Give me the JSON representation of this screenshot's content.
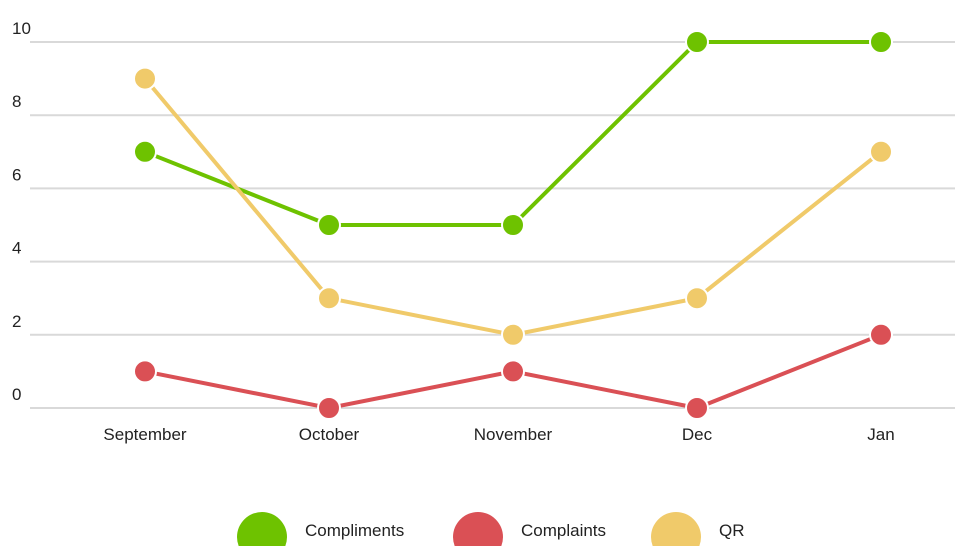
{
  "chart_data": {
    "type": "line",
    "categories": [
      "September",
      "October",
      "November",
      "Dec",
      "Jan"
    ],
    "series": [
      {
        "name": "Compliments",
        "color": "#6ec200",
        "values": [
          7,
          5,
          5,
          10,
          10
        ]
      },
      {
        "name": "Complaints",
        "color": "#da5055",
        "values": [
          1,
          0,
          1,
          0,
          2
        ]
      },
      {
        "name": "QR",
        "color": "#f0ca6a",
        "values": [
          9,
          3,
          2,
          3,
          7
        ]
      }
    ],
    "ylim": [
      0,
      10
    ],
    "yticks": [
      0,
      2,
      4,
      6,
      8,
      10
    ],
    "grid": true,
    "legend": "bottom"
  }
}
